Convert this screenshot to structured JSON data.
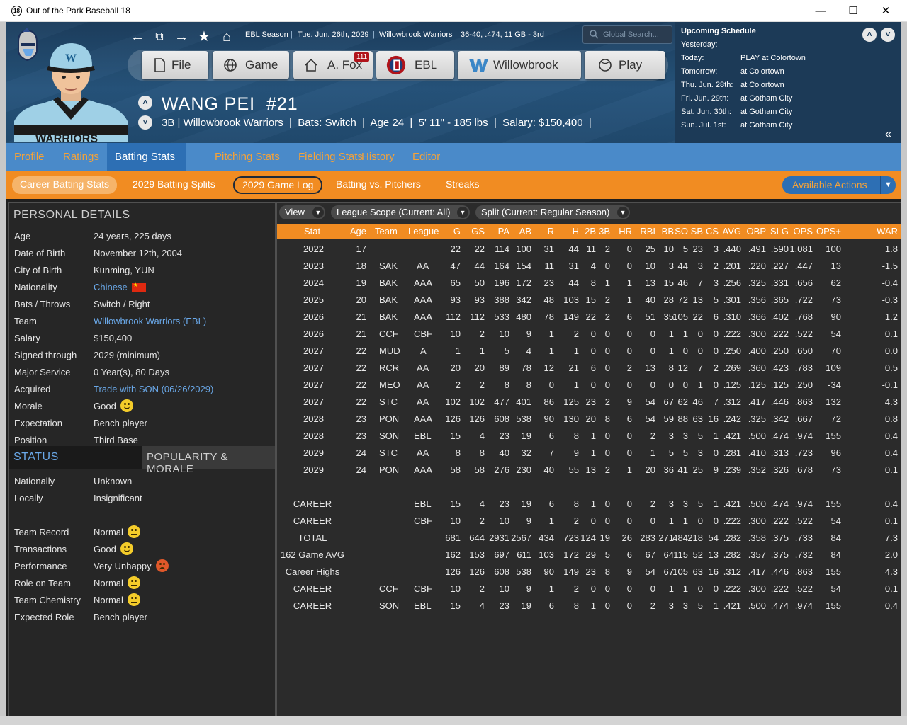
{
  "window": {
    "title": "Out of the Park Baseball 18",
    "app_icon": "18"
  },
  "breadcrumb": {
    "season": "EBL Season",
    "date": "Tue. Jun. 26th, 2029",
    "team": "Willowbrook Warriors",
    "record": "36-40, .474, 11 GB - 3rd"
  },
  "search": {
    "placeholder": "Global Search..."
  },
  "main_buttons": [
    {
      "label": "File",
      "icon": "file-icon"
    },
    {
      "label": "Game",
      "icon": "globe-icon"
    },
    {
      "label": "A. Fox",
      "icon": "home-icon",
      "badge": "111"
    },
    {
      "label": "EBL",
      "icon": "ebl-logo-icon"
    },
    {
      "label": "Willowbrook",
      "icon": "willowbrook-logo-icon"
    },
    {
      "label": "Play",
      "icon": "baseball-icon"
    }
  ],
  "player": {
    "name": "WANG PEI",
    "number": "#21",
    "info": "3B | Willowbrook Warriors  |  Bats: Switch  |  Age 24  |  5' 11\" - 185 lbs  |  Salary: $150,400  |"
  },
  "schedule": {
    "title": "Upcoming Schedule",
    "rows": [
      {
        "day": "Yesterday:",
        "value": ""
      },
      {
        "day": "Today:",
        "value": "PLAY at Colortown"
      },
      {
        "day": "Tomorrow:",
        "value": "at Colortown"
      },
      {
        "day": "Thu. Jun. 28th:",
        "value": "at Colortown"
      },
      {
        "day": "Fri. Jun. 29th:",
        "value": "at Gotham City"
      },
      {
        "day": "Sat. Jun. 30th:",
        "value": "at Gotham City"
      },
      {
        "day": "Sun. Jul. 1st:",
        "value": "at Gotham City"
      }
    ]
  },
  "tabs": [
    "Profile",
    "Ratings",
    "Batting Stats",
    "Pitching Stats",
    "Fielding Stats",
    "History",
    "Editor"
  ],
  "subtabs": [
    "Career Batting Stats",
    "2029 Batting Splits",
    "2029 Game Log",
    "Batting vs. Pitchers",
    "Streaks"
  ],
  "available_actions": "Available Actions",
  "personal": {
    "title": "PERSONAL DETAILS",
    "rows": [
      {
        "label": "Age",
        "value": "24 years, 225 days"
      },
      {
        "label": "Date of Birth",
        "value": "November 12th, 2004"
      },
      {
        "label": "City of Birth",
        "value": "Kunming, YUN"
      },
      {
        "label": "Nationality",
        "value": "Chinese"
      },
      {
        "label": "Bats / Throws",
        "value": "Switch / Right"
      },
      {
        "label": "Team",
        "value": "Willowbrook Warriors (EBL)"
      },
      {
        "label": "Salary",
        "value": "$150,400"
      },
      {
        "label": "Signed through",
        "value": "2029 (minimum)"
      },
      {
        "label": "Major Service",
        "value": "0 Year(s), 80 Days"
      },
      {
        "label": "Acquired",
        "value": "Trade with SON (06/26/2029)"
      },
      {
        "label": "Morale",
        "value": "Good"
      },
      {
        "label": "Expectation",
        "value": "Bench player"
      },
      {
        "label": "Position",
        "value": "Third Base"
      }
    ]
  },
  "status": {
    "tab_status": "STATUS",
    "tab_popularity": "POPULARITY & MORALE",
    "rows1": [
      {
        "label": "Nationally",
        "value": "Unknown"
      },
      {
        "label": "Locally",
        "value": "Insignificant"
      }
    ],
    "rows2": [
      {
        "label": "Team Record",
        "value": "Normal",
        "face": "neutral"
      },
      {
        "label": "Transactions",
        "value": "Good",
        "face": "happy"
      },
      {
        "label": "Performance",
        "value": "Very Unhappy",
        "face": "angry"
      },
      {
        "label": "Role on Team",
        "value": "Normal",
        "face": "neutral"
      },
      {
        "label": "Team Chemistry",
        "value": "Normal",
        "face": "neutral"
      },
      {
        "label": "Expected Role",
        "value": "Bench player",
        "face": ""
      }
    ]
  },
  "filters": {
    "view": "View",
    "scope": "League Scope  (Current: All)",
    "split": "Split  (Current: Regular Season)"
  },
  "table": {
    "columns": [
      "Stat",
      "Age",
      "Team",
      "League",
      "G",
      "GS",
      "PA",
      "AB",
      "R",
      "H",
      "2B",
      "3B",
      "HR",
      "RBI",
      "BB",
      "SO",
      "SB",
      "CS",
      "AVG",
      "OBP",
      "SLG",
      "OPS",
      "OPS+",
      "WAR"
    ],
    "rows": [
      [
        "2022",
        "17",
        "",
        "",
        "22",
        "22",
        "114",
        "100",
        "31",
        "44",
        "11",
        "2",
        "0",
        "25",
        "10",
        "5",
        "23",
        "3",
        ".440",
        ".491",
        ".590",
        "1.081",
        "100",
        "1.8"
      ],
      [
        "2023",
        "18",
        "SAK",
        "AA",
        "47",
        "44",
        "164",
        "154",
        "11",
        "31",
        "4",
        "0",
        "0",
        "10",
        "3",
        "44",
        "3",
        "2",
        ".201",
        ".220",
        ".227",
        ".447",
        "13",
        "-1.5"
      ],
      [
        "2024",
        "19",
        "BAK",
        "AAA",
        "65",
        "50",
        "196",
        "172",
        "23",
        "44",
        "8",
        "1",
        "1",
        "13",
        "15",
        "46",
        "7",
        "3",
        ".256",
        ".325",
        ".331",
        ".656",
        "62",
        "-0.4"
      ],
      [
        "2025",
        "20",
        "BAK",
        "AAA",
        "93",
        "93",
        "388",
        "342",
        "48",
        "103",
        "15",
        "2",
        "1",
        "40",
        "28",
        "72",
        "13",
        "5",
        ".301",
        ".356",
        ".365",
        ".722",
        "73",
        "-0.3"
      ],
      [
        "2026",
        "21",
        "BAK",
        "AAA",
        "112",
        "112",
        "533",
        "480",
        "78",
        "149",
        "22",
        "2",
        "6",
        "51",
        "35",
        "105",
        "22",
        "6",
        ".310",
        ".366",
        ".402",
        ".768",
        "90",
        "1.2"
      ],
      [
        "2026",
        "21",
        "CCF",
        "CBF",
        "10",
        "2",
        "10",
        "9",
        "1",
        "2",
        "0",
        "0",
        "0",
        "0",
        "1",
        "1",
        "0",
        "0",
        ".222",
        ".300",
        ".222",
        ".522",
        "54",
        "0.1"
      ],
      [
        "2027",
        "22",
        "MUD",
        "A",
        "1",
        "1",
        "5",
        "4",
        "1",
        "1",
        "0",
        "0",
        "0",
        "0",
        "1",
        "0",
        "0",
        "0",
        ".250",
        ".400",
        ".250",
        ".650",
        "70",
        "0.0"
      ],
      [
        "2027",
        "22",
        "RCR",
        "AA",
        "20",
        "20",
        "89",
        "78",
        "12",
        "21",
        "6",
        "0",
        "2",
        "13",
        "8",
        "12",
        "7",
        "2",
        ".269",
        ".360",
        ".423",
        ".783",
        "109",
        "0.5"
      ],
      [
        "2027",
        "22",
        "MEO",
        "AA",
        "2",
        "2",
        "8",
        "8",
        "0",
        "1",
        "0",
        "0",
        "0",
        "0",
        "0",
        "0",
        "1",
        "0",
        ".125",
        ".125",
        ".125",
        ".250",
        "-34",
        "-0.1"
      ],
      [
        "2027",
        "22",
        "STC",
        "AA",
        "102",
        "102",
        "477",
        "401",
        "86",
        "125",
        "23",
        "2",
        "9",
        "54",
        "67",
        "62",
        "46",
        "7",
        ".312",
        ".417",
        ".446",
        ".863",
        "132",
        "4.3"
      ],
      [
        "2028",
        "23",
        "PON",
        "AAA",
        "126",
        "126",
        "608",
        "538",
        "90",
        "130",
        "20",
        "8",
        "6",
        "54",
        "59",
        "88",
        "63",
        "16",
        ".242",
        ".325",
        ".342",
        ".667",
        "72",
        "0.8"
      ],
      [
        "2028",
        "23",
        "SON",
        "EBL",
        "15",
        "4",
        "23",
        "19",
        "6",
        "8",
        "1",
        "0",
        "0",
        "2",
        "3",
        "3",
        "5",
        "1",
        ".421",
        ".500",
        ".474",
        ".974",
        "155",
        "0.4"
      ],
      [
        "2029",
        "24",
        "STC",
        "AA",
        "8",
        "8",
        "40",
        "32",
        "7",
        "9",
        "1",
        "0",
        "0",
        "1",
        "5",
        "5",
        "3",
        "0",
        ".281",
        ".410",
        ".313",
        ".723",
        "96",
        "0.4"
      ],
      [
        "2029",
        "24",
        "PON",
        "AAA",
        "58",
        "58",
        "276",
        "230",
        "40",
        "55",
        "13",
        "2",
        "1",
        "20",
        "36",
        "41",
        "25",
        "9",
        ".239",
        ".352",
        ".326",
        ".678",
        "73",
        "0.1"
      ]
    ],
    "summary_rows": [
      [
        "CAREER",
        "",
        "",
        "EBL",
        "15",
        "4",
        "23",
        "19",
        "6",
        "8",
        "1",
        "0",
        "0",
        "2",
        "3",
        "3",
        "5",
        "1",
        ".421",
        ".500",
        ".474",
        ".974",
        "155",
        "0.4"
      ],
      [
        "CAREER",
        "",
        "",
        "CBF",
        "10",
        "2",
        "10",
        "9",
        "1",
        "2",
        "0",
        "0",
        "0",
        "0",
        "1",
        "1",
        "0",
        "0",
        ".222",
        ".300",
        ".222",
        ".522",
        "54",
        "0.1"
      ],
      [
        "TOTAL",
        "",
        "",
        "",
        "681",
        "644",
        "2931",
        "2567",
        "434",
        "723",
        "124",
        "19",
        "26",
        "283",
        "271",
        "484",
        "218",
        "54",
        ".282",
        ".358",
        ".375",
        ".733",
        "84",
        "7.3"
      ],
      [
        "162 Game AVG",
        "",
        "",
        "",
        "162",
        "153",
        "697",
        "611",
        "103",
        "172",
        "29",
        "5",
        "6",
        "67",
        "64",
        "115",
        "52",
        "13",
        ".282",
        ".357",
        ".375",
        ".732",
        "84",
        "2.0"
      ],
      [
        "Career Highs",
        "",
        "",
        "",
        "126",
        "126",
        "608",
        "538",
        "90",
        "149",
        "23",
        "8",
        "9",
        "54",
        "67",
        "105",
        "63",
        "16",
        ".312",
        ".417",
        ".446",
        ".863",
        "155",
        "4.3"
      ],
      [
        "CAREER",
        "",
        "CCF",
        "CBF",
        "10",
        "2",
        "10",
        "9",
        "1",
        "2",
        "0",
        "0",
        "0",
        "0",
        "1",
        "1",
        "0",
        "0",
        ".222",
        ".300",
        ".222",
        ".522",
        "54",
        "0.1"
      ],
      [
        "CAREER",
        "",
        "SON",
        "EBL",
        "15",
        "4",
        "23",
        "19",
        "6",
        "8",
        "1",
        "0",
        "0",
        "2",
        "3",
        "3",
        "5",
        "1",
        ".421",
        ".500",
        ".474",
        ".974",
        "155",
        "0.4"
      ]
    ]
  }
}
